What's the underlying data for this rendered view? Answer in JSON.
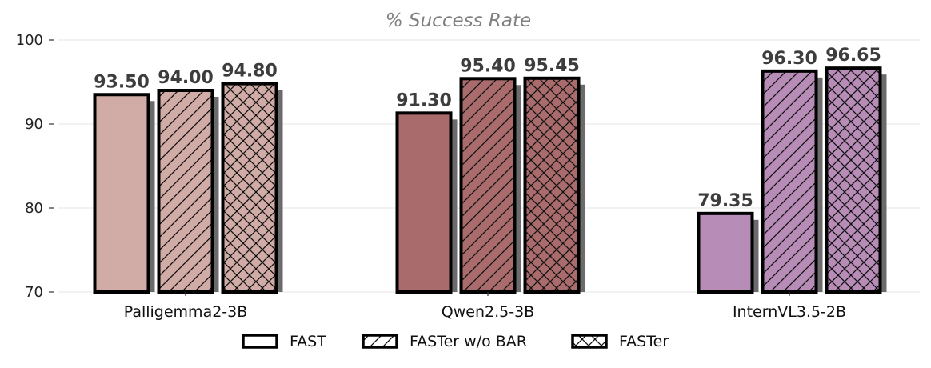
{
  "chart_data": {
    "type": "bar",
    "title": "% Success Rate",
    "categories": [
      "Palligemma2-3B",
      "Qwen2.5-3B",
      "InternVL3.5-2B"
    ],
    "series": [
      {
        "name": "FAST",
        "hatch": "none",
        "values": [
          93.5,
          94.0,
          94.8
        ]
      },
      {
        "name": "FASTer w/o BAR",
        "hatch": "diagonal",
        "values": [
          91.3,
          95.4,
          95.45
        ]
      },
      {
        "name": "FASTer",
        "hatch": "cross",
        "values": [
          79.35,
          96.3,
          96.65
        ]
      }
    ],
    "series_values_by_category": [
      [
        93.5,
        94.0,
        94.8
      ],
      [
        91.3,
        95.4,
        95.45
      ],
      [
        79.35,
        96.3,
        96.65
      ]
    ],
    "category_colors": [
      "#d1aca6",
      "#a96b6b",
      "#b78db7"
    ],
    "value_labels": [
      [
        "93.50",
        "94.00",
        "94.80"
      ],
      [
        "91.30",
        "95.40",
        "95.45"
      ],
      [
        "79.35",
        "96.30",
        "96.65"
      ]
    ],
    "ylim": [
      70,
      100
    ],
    "yticks": [
      70,
      80,
      90,
      100
    ],
    "grid": true,
    "legend_position": "bottom-center",
    "xlabel": "",
    "ylabel": ""
  }
}
